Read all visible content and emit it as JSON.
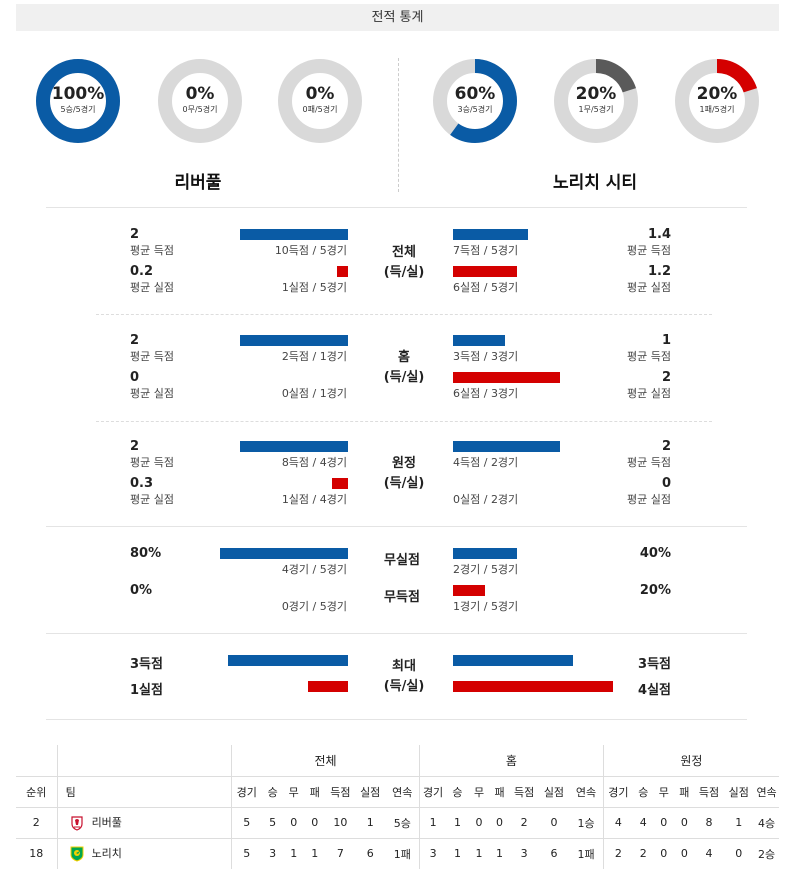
{
  "header": {
    "title": "전적 통계"
  },
  "donuts": [
    {
      "pct": "100%",
      "sub": "5승/5경기",
      "value": 1.0,
      "color": "#0a5ba5"
    },
    {
      "pct": "0%",
      "sub": "0무/5경기",
      "value": 0.0,
      "color": "#666666"
    },
    {
      "pct": "0%",
      "sub": "0패/5경기",
      "value": 0.0,
      "color": "#d40000"
    },
    {
      "pct": "60%",
      "sub": "3승/5경기",
      "value": 0.6,
      "color": "#0a5ba5"
    },
    {
      "pct": "20%",
      "sub": "1무/5경기",
      "value": 0.2,
      "color": "#5a5a5a"
    },
    {
      "pct": "20%",
      "sub": "1패/5경기",
      "value": 0.2,
      "color": "#d40000"
    }
  ],
  "teams": {
    "home": "리버풀",
    "away": "노리치 시티"
  },
  "sections": {
    "overall": {
      "label1": "전체",
      "label2": "(득/실)",
      "home_score": "2",
      "home_score_lbl": "평균 득점",
      "home_score_detail": "10득점 / 5경기",
      "home_concede": "0.2",
      "home_concede_lbl": "평균 실점",
      "home_concede_detail": "1실점 / 5경기",
      "away_score": "1.4",
      "away_score_lbl": "평균 득점",
      "away_score_detail": "7득점 / 5경기",
      "away_concede": "1.2",
      "away_concede_lbl": "평균 실점",
      "away_concede_detail": "6실점 / 5경기"
    },
    "home": {
      "label1": "홈",
      "label2": "(득/실)",
      "home_score": "2",
      "home_score_lbl": "평균 득점",
      "home_score_detail": "2득점 / 1경기",
      "home_concede": "0",
      "home_concede_lbl": "평균 실점",
      "home_concede_detail": "0실점 / 1경기",
      "away_score": "1",
      "away_score_lbl": "평균 득점",
      "away_score_detail": "3득점 / 3경기",
      "away_concede": "2",
      "away_concede_lbl": "평균 실점",
      "away_concede_detail": "6실점 / 3경기"
    },
    "away": {
      "label1": "원정",
      "label2": "(득/실)",
      "home_score": "2",
      "home_score_lbl": "평균 득점",
      "home_score_detail": "8득점 / 4경기",
      "home_concede": "0.3",
      "home_concede_lbl": "평균 실점",
      "home_concede_detail": "1실점 / 4경기",
      "away_score": "2",
      "away_score_lbl": "평균 득점",
      "away_score_detail": "4득점 / 2경기",
      "away_concede": "0",
      "away_concede_lbl": "평균 실점",
      "away_concede_detail": "0실점 / 2경기"
    },
    "clean": {
      "label_cs": "무실점",
      "label_fts": "무득점",
      "home_cs": "80%",
      "home_cs_detail": "4경기 / 5경기",
      "home_fts": "0%",
      "home_fts_detail": "0경기 / 5경기",
      "away_cs": "40%",
      "away_cs_detail": "2경기 / 5경기",
      "away_fts": "20%",
      "away_fts_detail": "1경기 / 5경기"
    },
    "max": {
      "label1": "최대",
      "label2": "(득/실)",
      "home_score": "3득점",
      "home_concede": "1실점",
      "away_score": "3득점",
      "away_concede": "4실점"
    }
  },
  "standings": {
    "group_overall": "전체",
    "group_home": "홈",
    "group_away": "원정",
    "col_rank": "순위",
    "col_team": "팀",
    "cols": [
      "경기",
      "승",
      "무",
      "패",
      "득점",
      "실점",
      "연속"
    ],
    "rows": [
      {
        "rank": "2",
        "team": "리버풀",
        "logo": "liverpool-crest",
        "overall": [
          "5",
          "5",
          "0",
          "0",
          "10",
          "1",
          "5승"
        ],
        "home": [
          "1",
          "1",
          "0",
          "0",
          "2",
          "0",
          "1승"
        ],
        "away": [
          "4",
          "4",
          "0",
          "0",
          "8",
          "1",
          "4승"
        ]
      },
      {
        "rank": "18",
        "team": "노리치",
        "logo": "norwich-crest",
        "overall": [
          "5",
          "3",
          "1",
          "1",
          "7",
          "6",
          "1패"
        ],
        "home": [
          "3",
          "1",
          "1",
          "1",
          "3",
          "6",
          "1패"
        ],
        "away": [
          "2",
          "2",
          "0",
          "0",
          "4",
          "0",
          "2승"
        ]
      }
    ]
  }
}
